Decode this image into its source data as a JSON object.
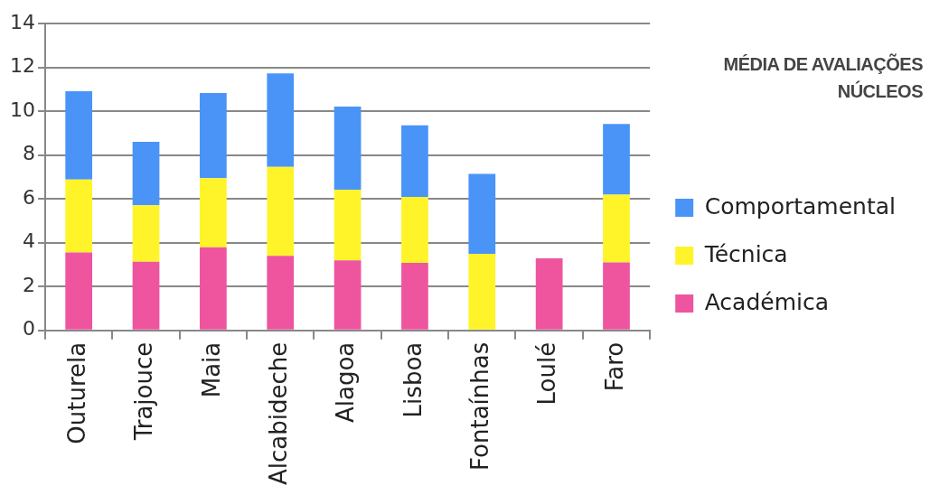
{
  "chart_data": {
    "type": "bar",
    "title": "MÉDIA DE AVALIAÇÕES NÚCLEOS",
    "categories": [
      "Outurela",
      "Trajouce",
      "Maia",
      "Alcabideche",
      "Alagoa",
      "Lisboa",
      "Fontaínhas",
      "Loulé",
      "Faro"
    ],
    "stacked": true,
    "series": [
      {
        "name": "Académica",
        "color": "#ef559f",
        "values": [
          3.55,
          3.13,
          3.79,
          3.4,
          3.19,
          3.08,
          0,
          3.29,
          3.1
        ]
      },
      {
        "name": "Técnica",
        "color": "#fff42a",
        "values": [
          3.33,
          2.58,
          3.15,
          4.06,
          3.23,
          3.01,
          3.49,
          0,
          3.09
        ]
      },
      {
        "name": "Comportamental",
        "color": "#4a94f8",
        "values": [
          4.03,
          2.89,
          3.89,
          4.26,
          3.79,
          3.26,
          3.65,
          0,
          3.23
        ]
      }
    ],
    "ylim": [
      0,
      14
    ],
    "yticks": [
      0,
      2,
      4,
      6,
      8,
      10,
      12,
      14
    ],
    "grid": "y",
    "legend": "right"
  }
}
